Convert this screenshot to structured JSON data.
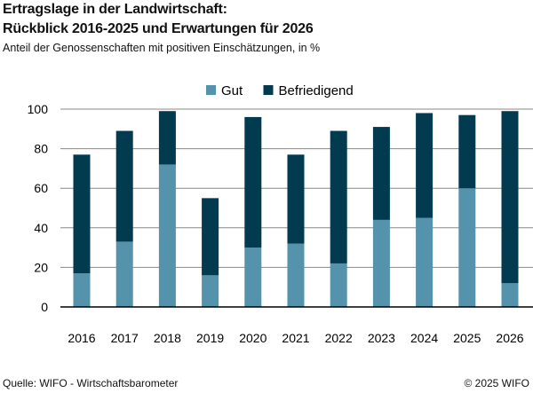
{
  "title_line1": "Ertragslage in der Landwirtschaft:",
  "title_line2": "Rückblick 2016-2025 und Erwartungen für 2026",
  "subtitle": "Anteil der Genossenschaften mit positiven Einschätzungen, in %",
  "source": "Quelle: WIFO - Wirtschaftsbarometer",
  "copyright": "© 2025 WIFO",
  "chart_data": {
    "type": "bar",
    "stacked": true,
    "categories": [
      "2016",
      "2017",
      "2018",
      "2019",
      "2020",
      "2021",
      "2022",
      "2023",
      "2024",
      "2025",
      "2026"
    ],
    "series": [
      {
        "name": "Gut",
        "color": "#5592ab",
        "values": [
          17,
          33,
          72,
          16,
          30,
          32,
          22,
          44,
          45,
          60,
          12
        ]
      },
      {
        "name": "Befriedigend",
        "color": "#023a50",
        "values": [
          60,
          56,
          27,
          39,
          66,
          45,
          67,
          47,
          53,
          37,
          87
        ]
      }
    ],
    "ylim": [
      0,
      100
    ],
    "yticks": [
      0,
      20,
      40,
      60,
      80,
      100
    ],
    "grid": true,
    "legend": "top-center"
  }
}
